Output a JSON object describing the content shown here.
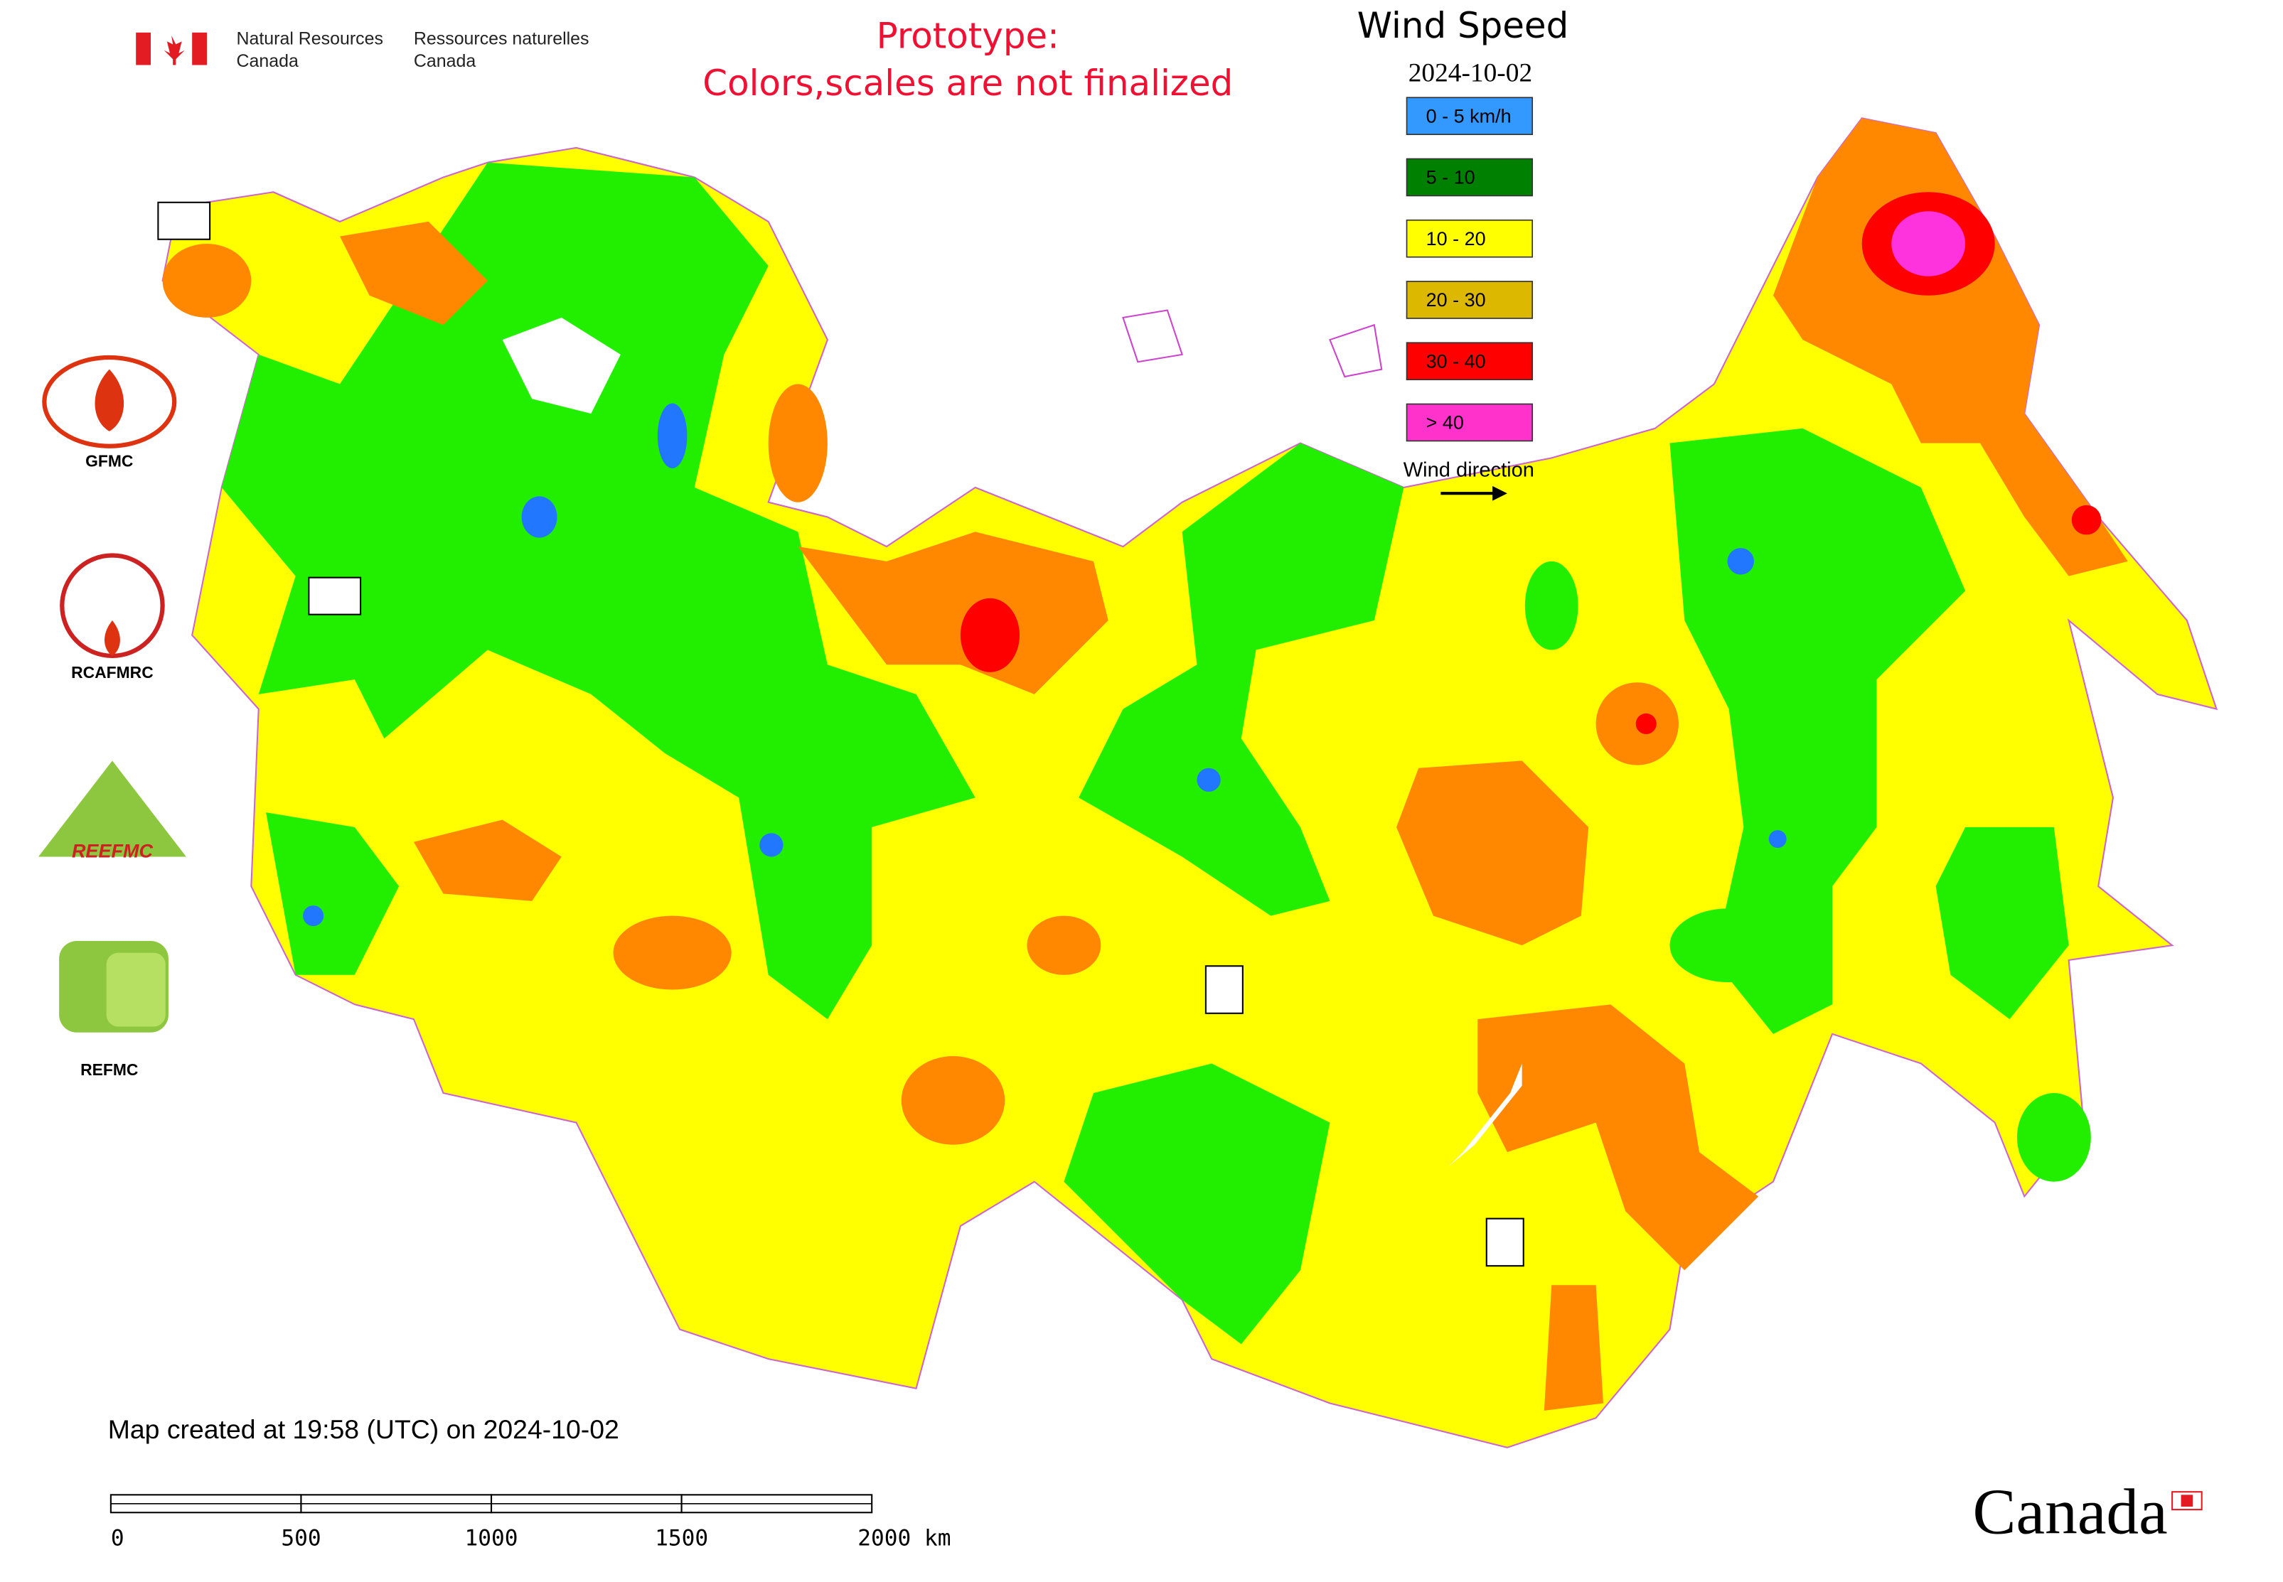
{
  "header": {
    "agency_en": [
      "Natural Resources",
      "Canada"
    ],
    "agency_fr": [
      "Ressources naturelles",
      "Canada"
    ],
    "prototype_note": [
      "Prototype:",
      "Colors,scales are not finalized"
    ]
  },
  "legend": {
    "title": "Wind Speed",
    "date": "2024-10-02",
    "items": [
      {
        "label": "0 - 5 km/h",
        "color": "#3399ff"
      },
      {
        "label": "5 - 10",
        "color": "#008000"
      },
      {
        "label": "10 - 20",
        "color": "#ffff00"
      },
      {
        "label": "20 - 30",
        "color": "#ddb800"
      },
      {
        "label": "30 - 40",
        "color": "#ff0000"
      },
      {
        "label": "> 40",
        "color": "#ff33cc"
      }
    ],
    "wind_direction": "Wind direction"
  },
  "logos": [
    "GFMC",
    "RCAFMRC",
    "REEFMC",
    "REFMC"
  ],
  "footer": {
    "created": "Map created at 19:58 (UTC) on 2024-10-02",
    "wordmark": "Canada"
  },
  "scale_bar": {
    "ticks": [
      "0",
      "500",
      "1000",
      "1500",
      "2000 km"
    ]
  }
}
